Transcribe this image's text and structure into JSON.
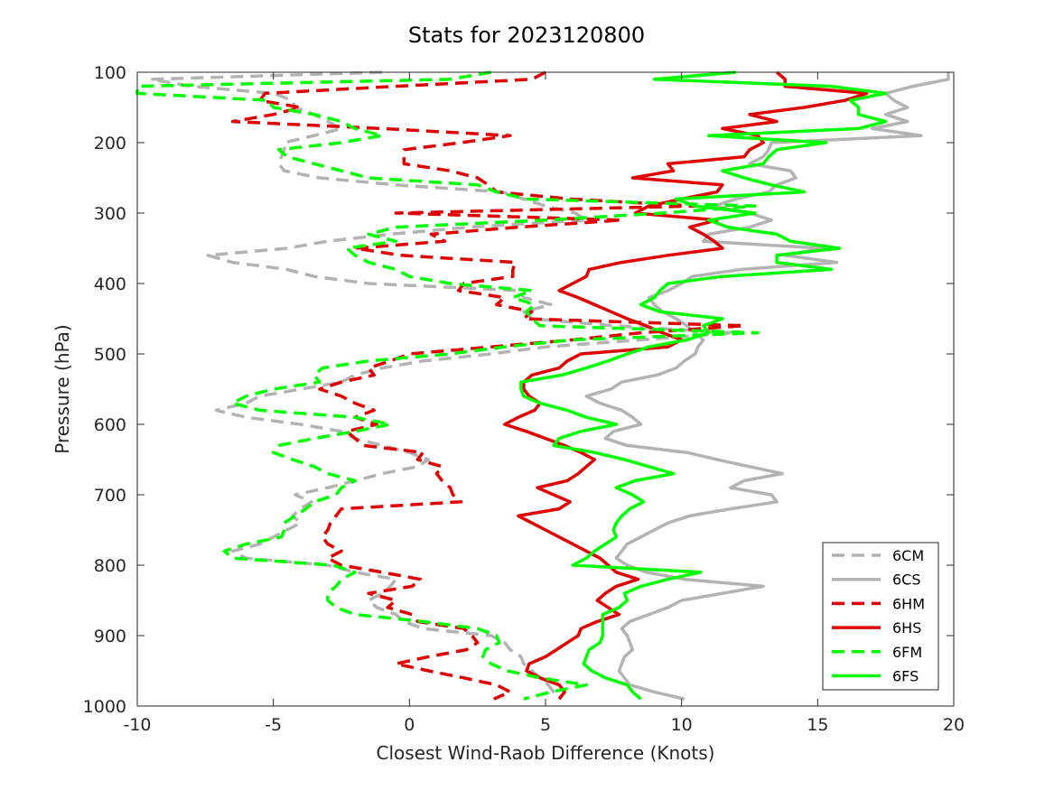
{
  "chart_data": {
    "type": "line",
    "title": "Stats for 2023120800",
    "xlabel": "Closest Wind-Raob Difference (Knots)",
    "ylabel": "Pressure (hPa)",
    "xlim": [
      -10,
      20
    ],
    "ylim": [
      100,
      1000
    ],
    "y_reversed": true,
    "xticks": [
      -10,
      -5,
      0,
      5,
      10,
      15,
      20
    ],
    "yticks": [
      100,
      200,
      300,
      400,
      500,
      600,
      700,
      800,
      900,
      1000
    ],
    "grid": false,
    "legend_position": "bottom-right",
    "pressure_levels": [
      100,
      110,
      120,
      130,
      140,
      150,
      160,
      170,
      180,
      190,
      200,
      210,
      220,
      230,
      240,
      250,
      260,
      270,
      280,
      290,
      300,
      310,
      320,
      330,
      340,
      350,
      360,
      370,
      380,
      390,
      400,
      410,
      420,
      430,
      440,
      450,
      460,
      470,
      480,
      490,
      500,
      510,
      520,
      530,
      540,
      550,
      560,
      570,
      580,
      590,
      600,
      610,
      620,
      630,
      640,
      650,
      660,
      670,
      680,
      690,
      700,
      710,
      720,
      730,
      740,
      750,
      760,
      770,
      780,
      790,
      800,
      810,
      820,
      830,
      840,
      850,
      860,
      870,
      880,
      890,
      900,
      910,
      920,
      930,
      940,
      950,
      960,
      970,
      980,
      990
    ],
    "series": [
      {
        "name": "6CM",
        "color": "#b3b3b3",
        "dash": true,
        "values": [
          -1,
          -9.5,
          -8,
          -5,
          -4.3,
          -4.2,
          -3.5,
          -3,
          -2.5,
          -3.5,
          -4.6,
          -4.6,
          -4.7,
          -4.8,
          -4.6,
          -3.3,
          -0.5,
          3.4,
          4.2,
          5,
          6.1,
          6.5,
          2.2,
          -0.7,
          -3,
          -4.5,
          -7.4,
          -6.5,
          -4.5,
          -3.5,
          -1.5,
          4,
          4.2,
          5.2,
          4.2,
          4.5,
          7.5,
          11.9,
          8.5,
          5,
          3,
          0.5,
          -1,
          -2,
          -2.5,
          -4,
          -5.5,
          -6,
          -7.1,
          -6,
          -4,
          -2.5,
          -2,
          -1,
          0,
          0.7,
          0.3,
          -1,
          -2,
          -3,
          -4.2,
          -3.6,
          -4,
          -4.3,
          -4,
          -4.5,
          -5,
          -5.5,
          -6.5,
          -6,
          -3,
          -2,
          -0.5,
          -0.7,
          -1,
          -1.5,
          -1.2,
          -0.5,
          -0.2,
          0.5,
          3,
          3.5,
          3.7,
          4.1,
          4.2,
          4.5,
          4.8,
          5.1,
          5.3,
          5.6
        ]
      },
      {
        "name": "6CS",
        "color": "#b3b3b3",
        "dash": false,
        "values": [
          19.8,
          19.8,
          18.5,
          17.5,
          17.8,
          18.3,
          17.5,
          18.3,
          17,
          18.8,
          13.3,
          13.2,
          13,
          12.5,
          14,
          14.2,
          13.5,
          13.2,
          12,
          11.2,
          12.5,
          13.3,
          12.5,
          11,
          10.8,
          15.2,
          13.8,
          15.7,
          12.2,
          10.4,
          10,
          9.5,
          8.8,
          9,
          9.3,
          9.8,
          10.2,
          10.5,
          10.8,
          10.6,
          10.5,
          10.1,
          9.8,
          9.1,
          7.8,
          7.4,
          6.5,
          7,
          7.8,
          8.2,
          8.5,
          7.5,
          7.2,
          8,
          10.2,
          11.3,
          12.5,
          13.7,
          12.3,
          11.8,
          13.3,
          13.5,
          11.8,
          10.3,
          9.5,
          9,
          8.5,
          8,
          7.8,
          7.6,
          8,
          8.7,
          10.1,
          13,
          11.5,
          10,
          9.5,
          8.8,
          8.1,
          7.8,
          8,
          8.1,
          8.2,
          7.9,
          7.8,
          7.7,
          7.9,
          8.1,
          9,
          10.1
        ]
      },
      {
        "name": "6HM",
        "color": "#e10000",
        "dash": true,
        "values": [
          5,
          4.5,
          -0.5,
          -5.3,
          -5.5,
          -4,
          -5,
          -6.5,
          -1,
          3.7,
          1.9,
          -0.2,
          -0.2,
          -0.2,
          1.5,
          2.5,
          2.9,
          3.2,
          5.9,
          10.5,
          -0.5,
          7.8,
          4,
          0.8,
          1.3,
          -2,
          -0.3,
          3.9,
          3.8,
          3.8,
          2,
          1.8,
          3.5,
          3.2,
          4.5,
          4.2,
          12.3,
          8.5,
          6,
          3,
          0,
          -0.7,
          -1.5,
          -1.3,
          -2.5,
          -3.3,
          -2.5,
          -2,
          -1.3,
          -2,
          -1.2,
          -2.3,
          -2,
          -1.7,
          0.5,
          0.3,
          1.2,
          1,
          1.2,
          1.5,
          1.6,
          1.9,
          -2.5,
          -2.7,
          -2.9,
          -3,
          -3.2,
          -3,
          -2.5,
          -3,
          -2.5,
          -1,
          0.4,
          0.1,
          -1.5,
          -0.5,
          -0.8,
          0.1,
          0.3,
          2,
          2.3,
          2.5,
          2.1,
          0.7,
          -0.5,
          0.7,
          2,
          3.2,
          3.7,
          3.1
        ]
      },
      {
        "name": "6HS",
        "color": "#e10000",
        "dash": false,
        "values": [
          13.5,
          13.8,
          13.8,
          16.8,
          16,
          14.5,
          12.5,
          13.5,
          11.5,
          12.8,
          13,
          12.5,
          12.3,
          9.5,
          9.7,
          8.2,
          11.5,
          11.3,
          10,
          8.8,
          8.3,
          11.3,
          10.3,
          10.8,
          11.2,
          11.5,
          9.5,
          7.8,
          6.6,
          6.5,
          6,
          5.5,
          6.2,
          6.8,
          7.4,
          8,
          8.7,
          9.3,
          10,
          9.5,
          6.3,
          5.8,
          5.5,
          4.5,
          4.2,
          4.2,
          4.4,
          4.8,
          4.6,
          4,
          3.5,
          4.3,
          5,
          5.7,
          6.3,
          6.8,
          6.5,
          6.2,
          5.8,
          4.7,
          5.3,
          5.9,
          5.5,
          4,
          4.5,
          5,
          5.5,
          6,
          6.5,
          7,
          7.3,
          7.6,
          8.4,
          7.6,
          7.2,
          6.9,
          7.3,
          7.7,
          6.9,
          6.3,
          6.2,
          5.8,
          5.4,
          5,
          4.4,
          4.3,
          4.8,
          5.5,
          5.7,
          5.5
        ]
      },
      {
        "name": "6FM",
        "color": "#00ff00",
        "dash": true,
        "values": [
          3,
          1.5,
          -10,
          -10,
          -5.2,
          -5,
          -3.5,
          -2.5,
          -2,
          -1,
          -2.5,
          -4.8,
          -4.5,
          -3.5,
          -2.5,
          -1.5,
          2.5,
          3.2,
          4.3,
          12.7,
          9.3,
          5,
          -0.5,
          -1.5,
          -0.5,
          -2.3,
          -2,
          -1.5,
          -0.5,
          0,
          1.5,
          4.5,
          3.8,
          4.6,
          4.3,
          4.5,
          4.8,
          12.8,
          6,
          3.5,
          1.5,
          -1.5,
          -3.2,
          -3.5,
          -3.3,
          -5,
          -6,
          -6.5,
          -5.5,
          -2,
          -0.7,
          -2,
          -3.5,
          -4.8,
          -5,
          -4.3,
          -3.5,
          -3,
          -2,
          -2.5,
          -2.7,
          -3.5,
          -3.8,
          -4.2,
          -4.6,
          -4.6,
          -4.7,
          -6,
          -6.8,
          -6.5,
          -2.8,
          -2,
          -2.5,
          -2.7,
          -3,
          -3,
          -2.7,
          -2,
          0.5,
          2.5,
          3.2,
          3.3,
          2.8,
          2.7,
          3,
          3.6,
          4.8,
          6.5,
          5.2,
          4.2
        ]
      },
      {
        "name": "6FS",
        "color": "#00ff00",
        "dash": false,
        "values": [
          12,
          9,
          15.5,
          17.5,
          16.2,
          16.5,
          16.5,
          17.5,
          16.5,
          11,
          15.3,
          13.5,
          13.2,
          13,
          11.5,
          12.3,
          13.3,
          14.5,
          9.8,
          10.5,
          12.7,
          11,
          11.7,
          13.5,
          14,
          15.8,
          13.5,
          13.5,
          15.5,
          11.5,
          9.5,
          9.2,
          9,
          8.5,
          9.2,
          11.5,
          10.8,
          11,
          10.2,
          8.8,
          8,
          7.3,
          6.5,
          5.6,
          4.1,
          4.1,
          4.2,
          4.8,
          5.8,
          6.5,
          7.6,
          6.3,
          5.5,
          5.3,
          6.8,
          7.9,
          8.8,
          9.7,
          8.3,
          7.6,
          8.2,
          8.6,
          8.1,
          7.8,
          7.6,
          7.5,
          7.6,
          7.2,
          6.8,
          6.5,
          6,
          10.7,
          9.5,
          8.5,
          7.9,
          8,
          7.7,
          7.1,
          7.1,
          7.1,
          7.1,
          7,
          6.6,
          6.5,
          6.4,
          6.7,
          7.2,
          8,
          8.2,
          8.5
        ]
      }
    ]
  }
}
